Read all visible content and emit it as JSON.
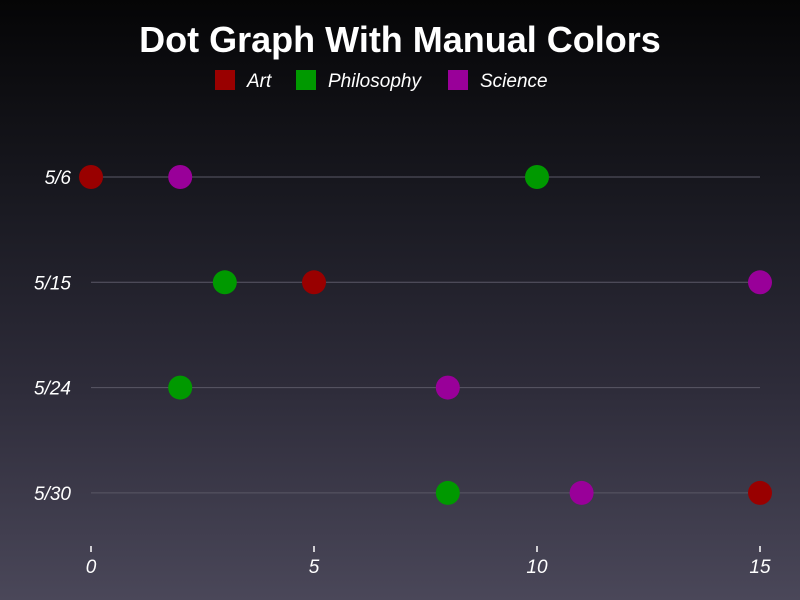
{
  "chart_data": {
    "type": "scatter",
    "title": "Dot Graph With Manual Colors",
    "categories": [
      "5/6",
      "5/15",
      "5/24",
      "5/30"
    ],
    "xlim": [
      0,
      15
    ],
    "x_ticks": [
      0,
      5,
      10,
      15
    ],
    "grid": "horizontal lines per category",
    "legend_position": "top",
    "series": [
      {
        "name": "Art",
        "color": "#990000",
        "values": [
          0,
          5,
          null,
          15
        ]
      },
      {
        "name": "Philosophy",
        "color": "#009900",
        "values": [
          10,
          3,
          2,
          8
        ]
      },
      {
        "name": "Science",
        "color": "#990099",
        "values": [
          2,
          15,
          8,
          11
        ]
      }
    ]
  }
}
